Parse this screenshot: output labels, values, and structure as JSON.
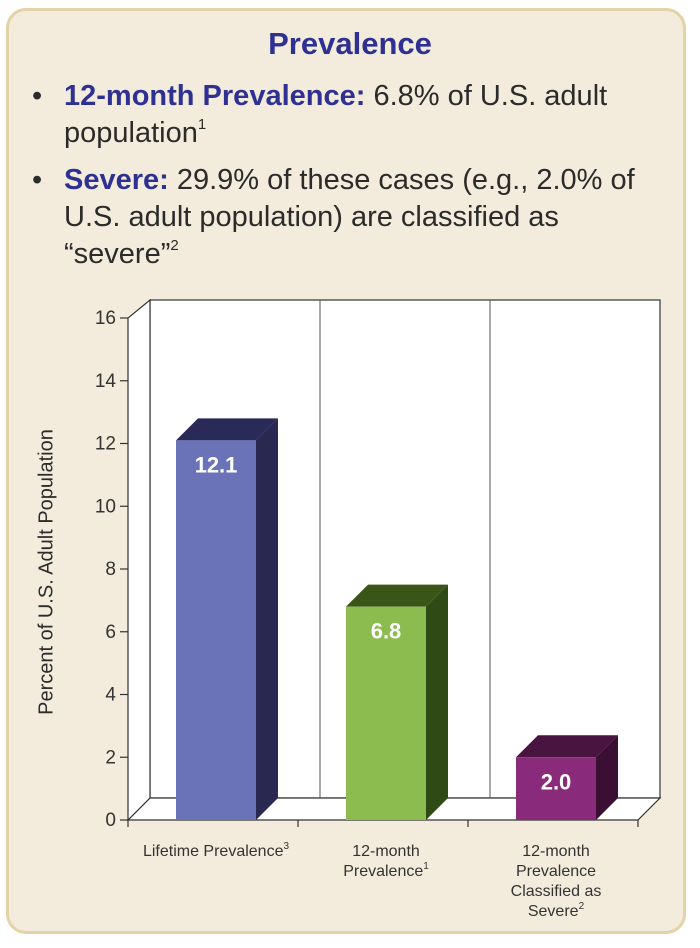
{
  "title": "Prevalence",
  "bullets": [
    {
      "term": "12-month Prevalence:",
      "text": " 6.8% of U.S. adult population",
      "sup": "1"
    },
    {
      "term": "Severe:",
      "text": " 29.9% of these cases (e.g., 2.0% of U.S. adult population) are classified as “severe”",
      "sup": "2"
    }
  ],
  "chart_data": {
    "type": "bar",
    "ylabel": "Percent of U.S. Adult Population",
    "ylim": [
      0,
      16
    ],
    "yticks": [
      "0",
      "2",
      "4",
      "6",
      "8",
      "10",
      "12",
      "14",
      "16"
    ],
    "categories": [
      {
        "label": "Lifetime Prevalence",
        "sup": "3"
      },
      {
        "label": "12-month Prevalence",
        "sup": "1"
      },
      {
        "label": "12-month Prevalence Classified as Severe",
        "sup": "2"
      }
    ],
    "values": [
      12.1,
      6.8,
      2.0
    ],
    "value_labels": [
      "12.1",
      "6.8",
      "2.0"
    ],
    "colors": {
      "front": [
        "#6a73b8",
        "#8cbb4f",
        "#8a2a7a"
      ],
      "side": [
        "#282850",
        "#2f4a14",
        "#3a0f33"
      ],
      "top": [
        "#2a2a58",
        "#3a5518",
        "#4a1440"
      ]
    },
    "grid": false
  }
}
